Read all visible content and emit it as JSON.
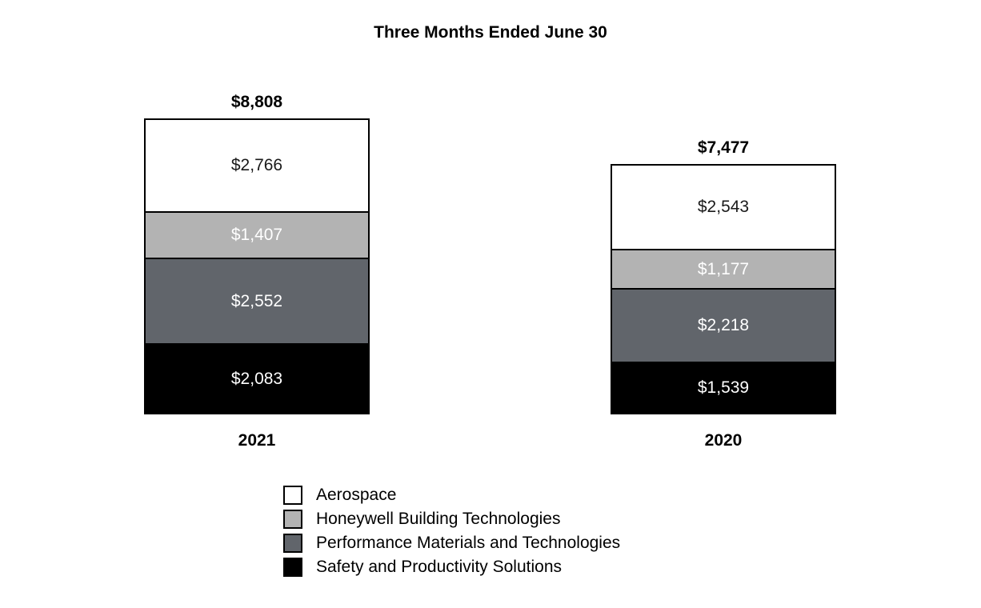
{
  "title": "Three Months Ended June 30",
  "chart_data": {
    "type": "bar",
    "stacked": true,
    "title": "Three Months Ended June 30",
    "categories": [
      "2021",
      "2020"
    ],
    "series": [
      {
        "name": "Aerospace",
        "color": "#ffffff",
        "text_color": "#1a1a1a",
        "values": [
          2766,
          2543
        ],
        "labels": [
          "$2,766",
          "$2,543"
        ]
      },
      {
        "name": "Honeywell Building Technologies",
        "color": "#b3b3b3",
        "text_color": "#ffffff",
        "values": [
          1407,
          1177
        ],
        "labels": [
          "$1,407",
          "$1,177"
        ]
      },
      {
        "name": "Performance Materials and Technologies",
        "color": "#61656b",
        "text_color": "#ffffff",
        "values": [
          2552,
          2218
        ],
        "labels": [
          "$2,552",
          "$2,218"
        ]
      },
      {
        "name": "Safety and Productivity Solutions",
        "color": "#000000",
        "text_color": "#ffffff",
        "values": [
          2083,
          1539
        ],
        "labels": [
          "$2,083",
          "$1,539"
        ]
      }
    ],
    "totals": [
      8808,
      7477
    ],
    "total_labels": [
      "$8,808",
      "$7,477"
    ],
    "legend_position": "bottom",
    "segment_order_top_to_bottom": [
      "Aerospace",
      "Honeywell Building Technologies",
      "Performance Materials and Technologies",
      "Safety and Productivity Solutions"
    ]
  }
}
